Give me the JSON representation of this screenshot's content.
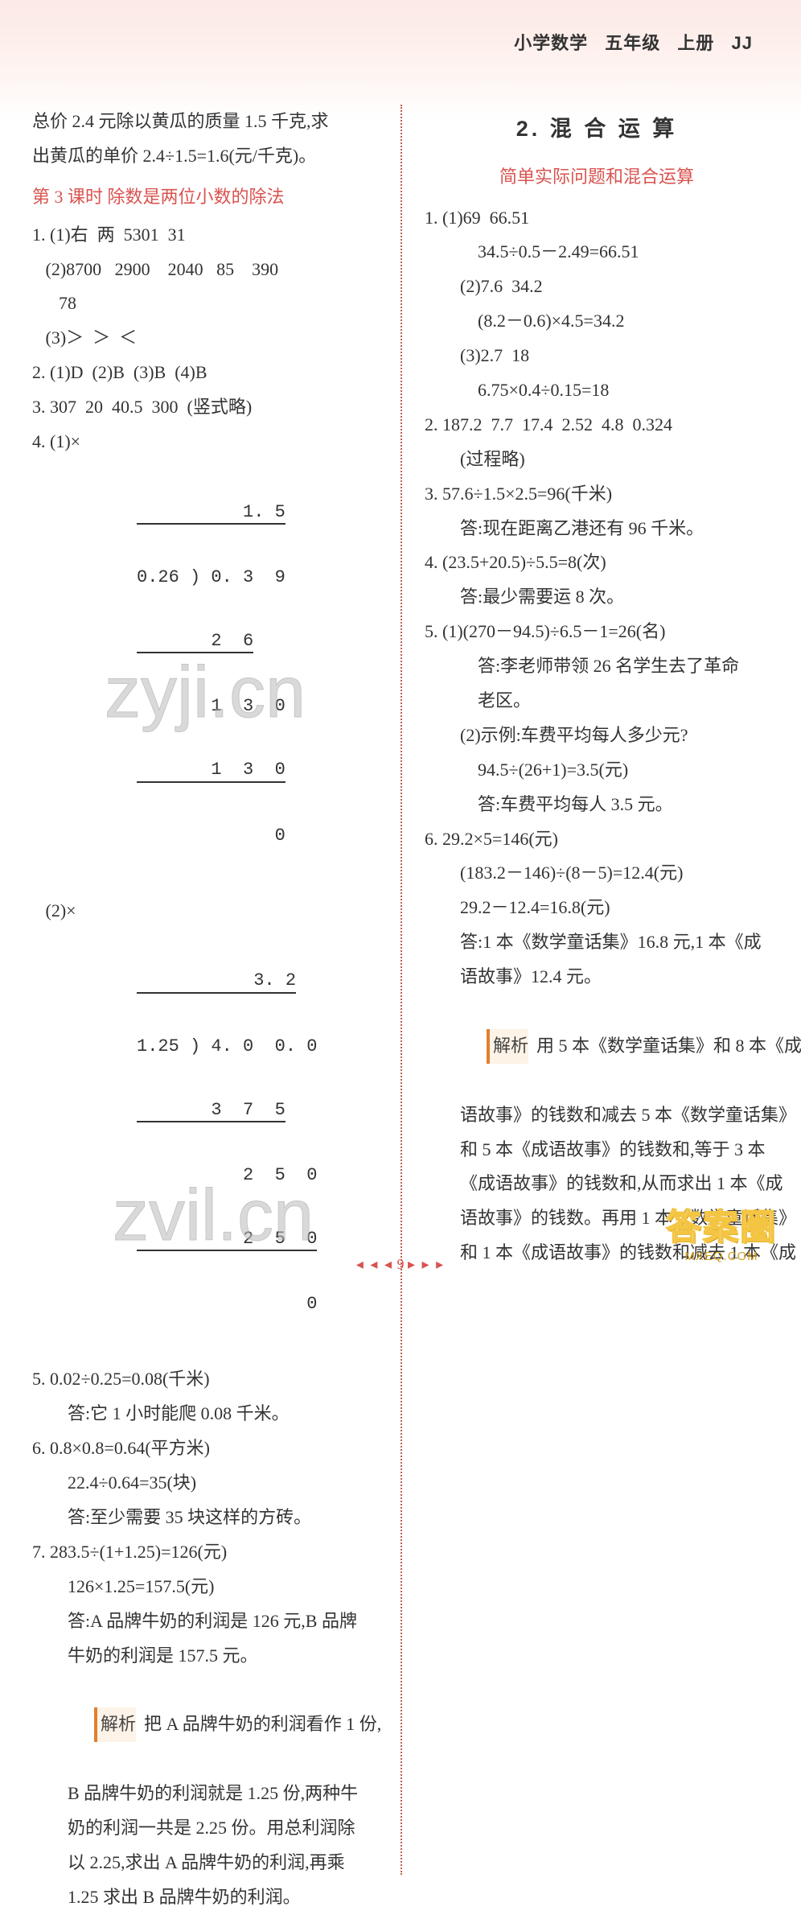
{
  "header": {
    "subject": "小学数学",
    "grade": "五年级",
    "volume": "上册",
    "series": "JJ"
  },
  "left": {
    "intro_l1": "总价 2.4 元除以黄瓜的质量 1.5 千克,求",
    "intro_l2": "出黄瓜的单价 2.4÷1.5=1.6(元/千克)。",
    "lesson_title": "第 3 课时  除数是两位小数的除法",
    "q1_1": "1. (1)右  两  5301  31",
    "q1_2": "   (2)8700   2900    2040   85    390",
    "q1_2b": "      78",
    "q1_3": "   (3)＞  ＞  ＜",
    "q2": "2. (1)D  (2)B  (3)B  (4)B",
    "q3": "3. 307  20  40.5  300  (竖式略)",
    "q4a": "4. (1)×",
    "div1": {
      "quot": "          1. 5",
      "row1": "0.26 ) 0. 3  9",
      "row2": "       2  6",
      "row3": "       1  3  0",
      "row4": "       1  3  0",
      "row5": "             0"
    },
    "q4b": "   (2)×",
    "div2": {
      "quot": "           3. 2",
      "row1": "1.25 ) 4. 0  0. 0",
      "row2": "       3  7  5",
      "row3": "          2  5  0",
      "row4": "          2  5  0",
      "row5": "                0"
    },
    "q5a": "5. 0.02÷0.25=0.08(千米)",
    "q5b": "答:它 1 小时能爬 0.08 千米。",
    "q6a": "6. 0.8×0.8=0.64(平方米)",
    "q6b": "22.4÷0.64=35(块)",
    "q6c": "答:至少需要 35 块这样的方砖。",
    "q7a": "7. 283.5÷(1+1.25)=126(元)",
    "q7b": "126×1.25=157.5(元)",
    "q7c": "答:A 品牌牛奶的利润是 126 元,B 品牌",
    "q7d": "牛奶的利润是 157.5 元。",
    "ana_label": "解析",
    "ana1": "把 A 品牌牛奶的利润看作 1 份,",
    "ana2": "B 品牌牛奶的利润就是 1.25 份,两种牛",
    "ana3": "奶的利润一共是 2.25 份。用总利润除",
    "ana4": "以 2.25,求出 A 品牌牛奶的利润,再乘",
    "ana5": "1.25 求出 B 品牌牛奶的利润。"
  },
  "right": {
    "section_title": "2. 混 合 运 算",
    "subtitle": "简单实际问题和混合运算",
    "q1_1a": "1. (1)69  66.51",
    "q1_1b": "34.5÷0.5－2.49=66.51",
    "q1_2a": "(2)7.6  34.2",
    "q1_2b": "(8.2－0.6)×4.5=34.2",
    "q1_3a": "(3)2.7  18",
    "q1_3b": "6.75×0.4÷0.15=18",
    "q2a": "2. 187.2  7.7  17.4  2.52  4.8  0.324",
    "q2b": "(过程略)",
    "q3a": "3. 57.6÷1.5×2.5=96(千米)",
    "q3b": "答:现在距离乙港还有 96 千米。",
    "q4a": "4. (23.5+20.5)÷5.5=8(次)",
    "q4b": "答:最少需要运 8 次。",
    "q5a": "5. (1)(270－94.5)÷6.5－1=26(名)",
    "q5b": "答:李老师带领 26 名学生去了革命",
    "q5c": "老区。",
    "q5d": "(2)示例:车费平均每人多少元?",
    "q5e": "94.5÷(26+1)=3.5(元)",
    "q5f": "答:车费平均每人 3.5 元。",
    "q6a": "6. 29.2×5=146(元)",
    "q6b": "(183.2－146)÷(8－5)=12.4(元)",
    "q6c": "29.2－12.4=16.8(元)",
    "q6d": "答:1 本《数学童话集》16.8 元,1 本《成",
    "q6e": "语故事》12.4 元。",
    "ana_label": "解析",
    "ana1": "用 5 本《数学童话集》和 8 本《成",
    "ana2": "语故事》的钱数和减去 5 本《数学童话集》",
    "ana3": "和 5 本《成语故事》的钱数和,等于 3 本",
    "ana4": "《成语故事》的钱数和,从而求出 1 本《成",
    "ana5": "语故事》的钱数。再用 1 本《数学童话集》",
    "ana6": "和 1 本《成语故事》的钱数和减去 1 本《成"
  },
  "footer": {
    "page": "9",
    "dots_l": "◂ ◂ ◂",
    "dots_r": "▸ ▸ ▸"
  },
  "watermarks": {
    "w1": "zyji.cn",
    "w2": "zvil.cn"
  },
  "corner": {
    "big": "答案圈",
    "url": "MXEQ.COM"
  },
  "colors": {
    "accent_red": "#d9534f",
    "gradient_top": "#fce9e5",
    "divider": "#c06050",
    "analysis_border": "#e08030",
    "text": "#333333"
  }
}
